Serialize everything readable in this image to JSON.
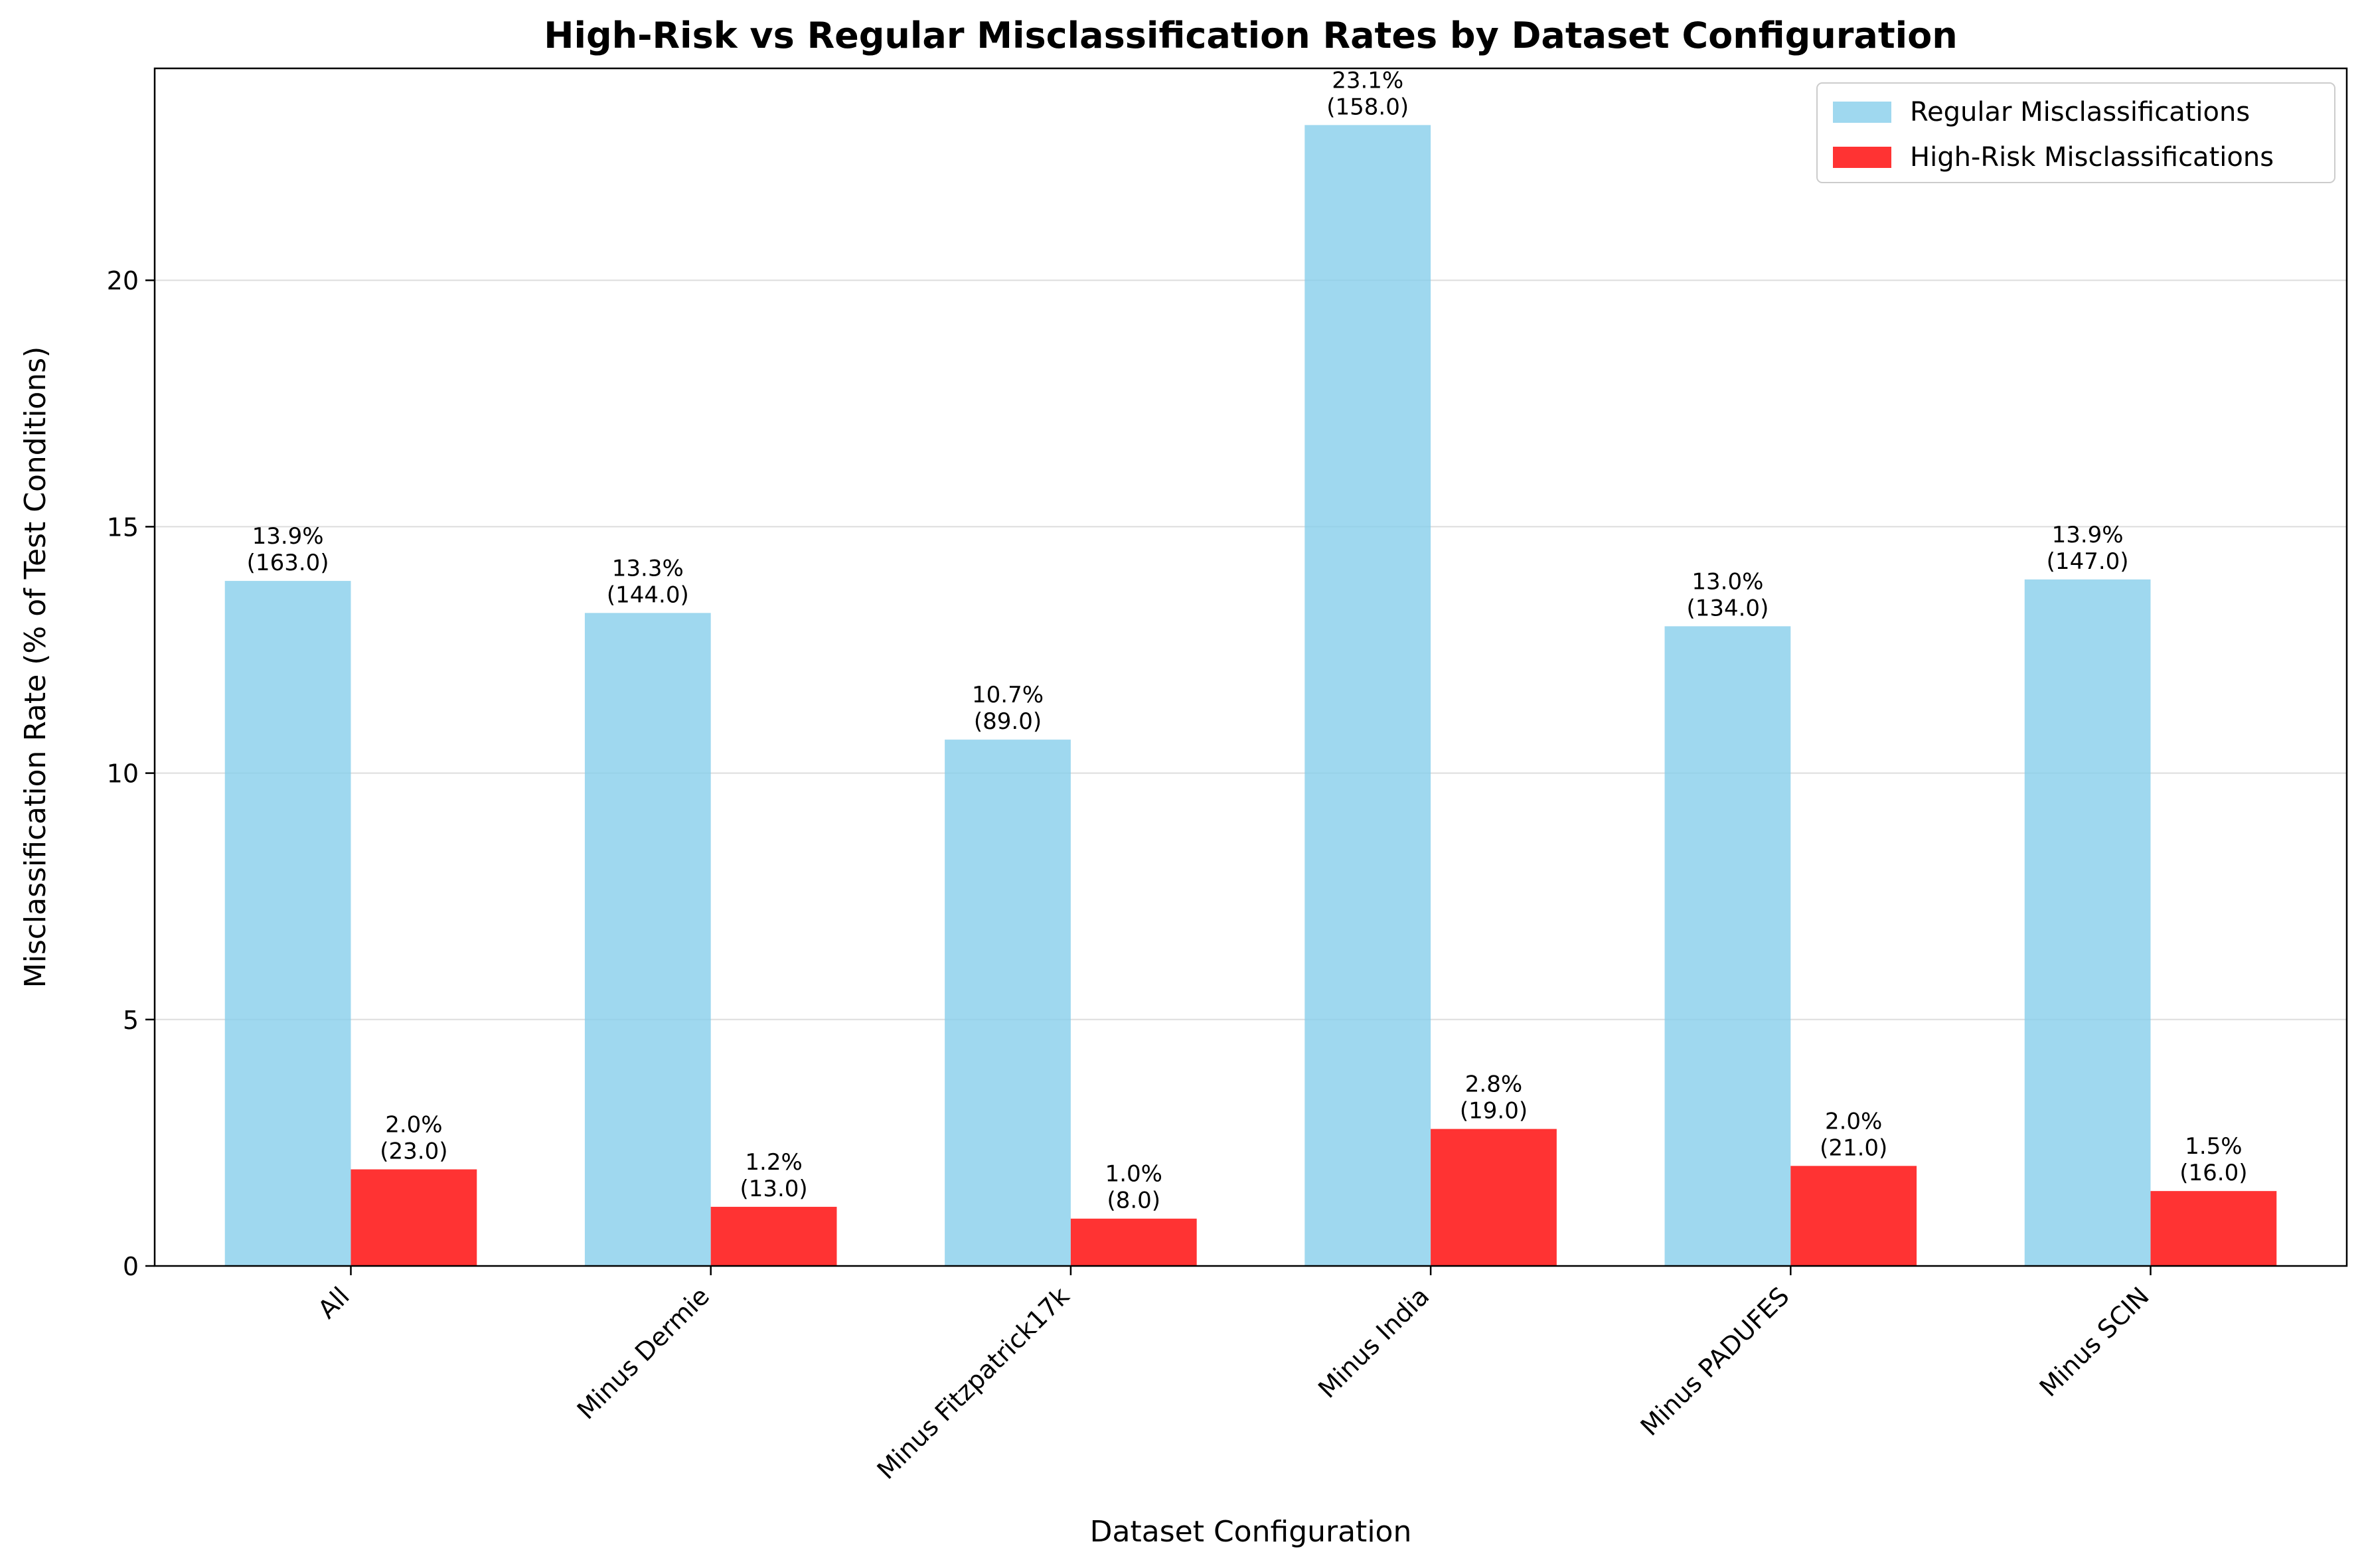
{
  "chart_data": {
    "type": "bar",
    "title": "High-Risk vs Regular Misclassification Rates by Dataset Configuration",
    "xlabel": "Dataset Configuration",
    "ylabel": "Misclassification Rate (% of Test Conditions)",
    "categories": [
      "All",
      "Minus Dermie",
      "Minus Fitzpatrick17k",
      "Minus India",
      "Minus PADUFES",
      "Minus SCIN"
    ],
    "ylim": [
      0,
      24.3
    ],
    "yticks": [
      0,
      5,
      10,
      15,
      20
    ],
    "grid": "y",
    "legend_position": "top-right",
    "series": [
      {
        "name": "Regular Misclassifications",
        "color": "#87ceeb",
        "values": [
          13.9,
          13.25,
          10.68,
          23.15,
          12.98,
          13.93
        ],
        "labels": [
          "13.9%\n(163.0)",
          "13.3%\n(144.0)",
          "10.7%\n(89.0)",
          "23.1%\n(158.0)",
          "13.0%\n(134.0)",
          "13.9%\n(147.0)"
        ]
      },
      {
        "name": "High-Risk Misclassifications",
        "color": "#ff0000",
        "values": [
          1.96,
          1.2,
          0.96,
          2.78,
          2.03,
          1.52
        ],
        "labels": [
          "2.0%\n(23.0)",
          "1.2%\n(13.0)",
          "1.0%\n(8.0)",
          "2.8%\n(19.0)",
          "2.0%\n(21.0)",
          "1.5%\n(16.0)"
        ]
      }
    ]
  }
}
